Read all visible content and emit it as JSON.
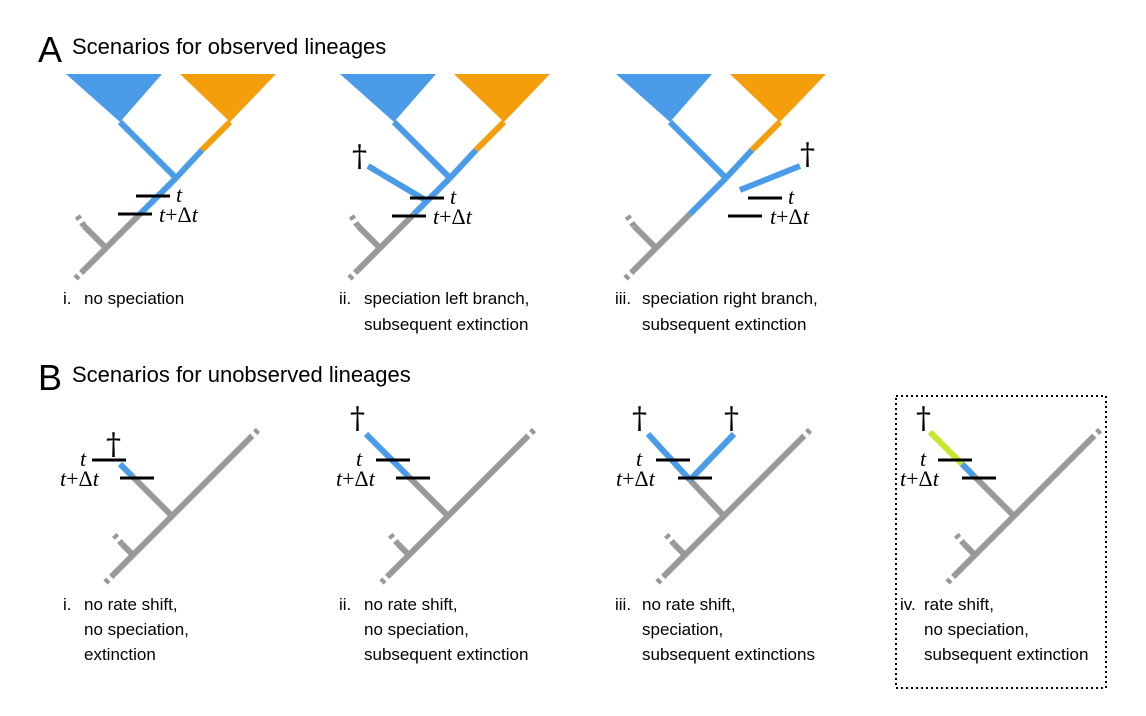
{
  "colors": {
    "blue": "#4A9BE8",
    "orange": "#F59E0B",
    "gray": "#999999",
    "lime": "#C5E82A",
    "black": "#000000"
  },
  "panel_a": {
    "letter": "A",
    "title": "Scenarios for observed lineages",
    "scenarios": [
      {
        "num": "i.",
        "lines": [
          "no speciation"
        ]
      },
      {
        "num": "ii.",
        "lines": [
          "speciation left branch,",
          "subsequent extinction"
        ]
      },
      {
        "num": "iii.",
        "lines": [
          "speciation right branch,",
          "subsequent extinction"
        ]
      }
    ]
  },
  "panel_b": {
    "letter": "B",
    "title": "Scenarios for unobserved lineages",
    "scenarios": [
      {
        "num": "i.",
        "lines": [
          "no rate shift,",
          "no speciation,",
          "extinction"
        ]
      },
      {
        "num": "ii.",
        "lines": [
          "no rate shift,",
          "no speciation,",
          "subsequent extinction"
        ]
      },
      {
        "num": "iii.",
        "lines": [
          "no rate shift,",
          "speciation,",
          "subsequent extinctions"
        ]
      },
      {
        "num": "iv.",
        "lines": [
          "rate shift,",
          "no speciation,",
          "subsequent extinction"
        ]
      }
    ]
  },
  "labels": {
    "t": "t",
    "t_plus": "t",
    "plus": "+",
    "delta": "Δ",
    "t_end": "t",
    "dagger": "†"
  }
}
